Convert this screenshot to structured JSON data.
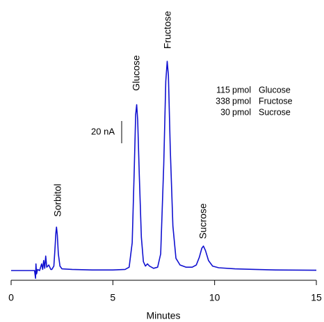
{
  "chart_data": {
    "type": "line",
    "x_label": "Minutes",
    "xlim": [
      0,
      15
    ],
    "xticks": [
      0,
      5,
      10,
      15
    ],
    "ylim": [
      -8.75,
      200
    ],
    "scale_bar": {
      "value": 20,
      "label": "20 nA"
    },
    "series": [
      {
        "color": "#1010d0",
        "x": [
          0,
          1.0,
          1.15,
          1.2,
          1.22,
          1.25,
          1.3,
          1.4,
          1.5,
          1.55,
          1.6,
          1.65,
          1.7,
          1.75,
          1.85,
          1.95,
          2.0,
          2.1,
          2.15,
          2.2,
          2.23,
          2.27,
          2.32,
          2.4,
          2.5,
          3,
          4,
          5,
          5.6,
          5.8,
          5.95,
          6.05,
          6.12,
          6.17,
          6.22,
          6.3,
          6.4,
          6.5,
          6.6,
          6.7,
          6.8,
          7.0,
          7.2,
          7.35,
          7.5,
          7.6,
          7.67,
          7.73,
          7.82,
          7.95,
          8.1,
          8.3,
          8.6,
          8.9,
          9.1,
          9.25,
          9.37,
          9.45,
          9.55,
          9.7,
          9.9,
          10.2,
          11,
          12,
          13,
          15
        ],
        "values": [
          0,
          0,
          0,
          -7,
          6,
          -3,
          1,
          0,
          6,
          1,
          9,
          2,
          13,
          3,
          5,
          1,
          1,
          4,
          18,
          34,
          39,
          32,
          15,
          4,
          1.5,
          1,
          0.5,
          0.5,
          1,
          3,
          25,
          90,
          140,
          149,
          135,
          85,
          30,
          8,
          4,
          6,
          4,
          2,
          3,
          15,
          95,
          170,
          188,
          175,
          110,
          40,
          11,
          5,
          3,
          3,
          5,
          12,
          20,
          22,
          18,
          9,
          4,
          2.5,
          1.5,
          1,
          0.5,
          0.3
        ]
      }
    ],
    "annotations": [
      "Sorbitol",
      "Glucose",
      "Fructose",
      "Sucrose"
    ],
    "amounts": [
      [
        "115",
        "pmol",
        "Glucose"
      ],
      [
        "338",
        "pmol",
        "Fructose"
      ],
      [
        "30",
        "pmol",
        "Sucrose"
      ]
    ]
  }
}
